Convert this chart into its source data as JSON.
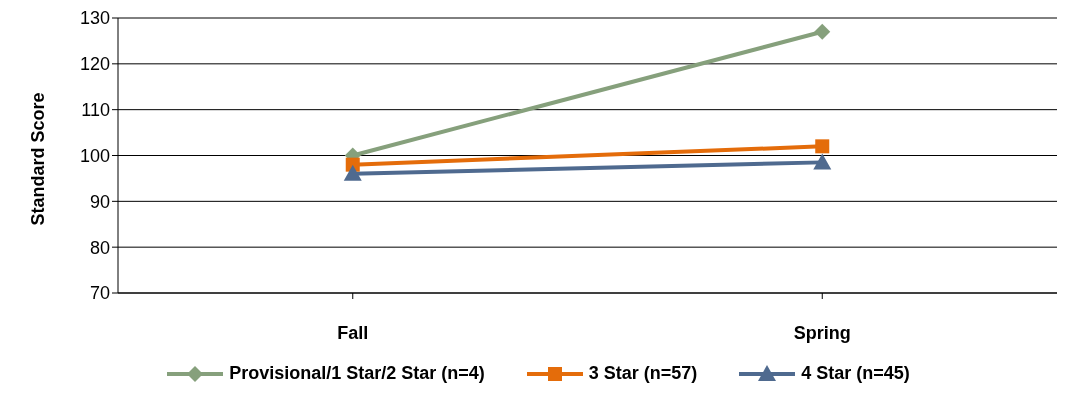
{
  "chart_data": {
    "type": "line",
    "ylabel": "Standard Score",
    "categories": [
      "Fall",
      "Spring"
    ],
    "series": [
      {
        "name": "Provisional/1 Star/2 Star (n=4)",
        "color": "#86a07c",
        "values": [
          100,
          127
        ],
        "marker": "diamond"
      },
      {
        "name": "3 Star (n=57)",
        "color": "#e46c0a",
        "values": [
          98,
          102
        ],
        "marker": "square"
      },
      {
        "name": "4 Star (n=45)",
        "color": "#4f6a8f",
        "values": [
          96,
          98.5
        ],
        "marker": "triangle"
      }
    ],
    "ylim": [
      70,
      130
    ],
    "yticks": [
      70,
      80,
      90,
      100,
      110,
      120,
      130
    ],
    "grid": "y",
    "legend": "bottom"
  }
}
